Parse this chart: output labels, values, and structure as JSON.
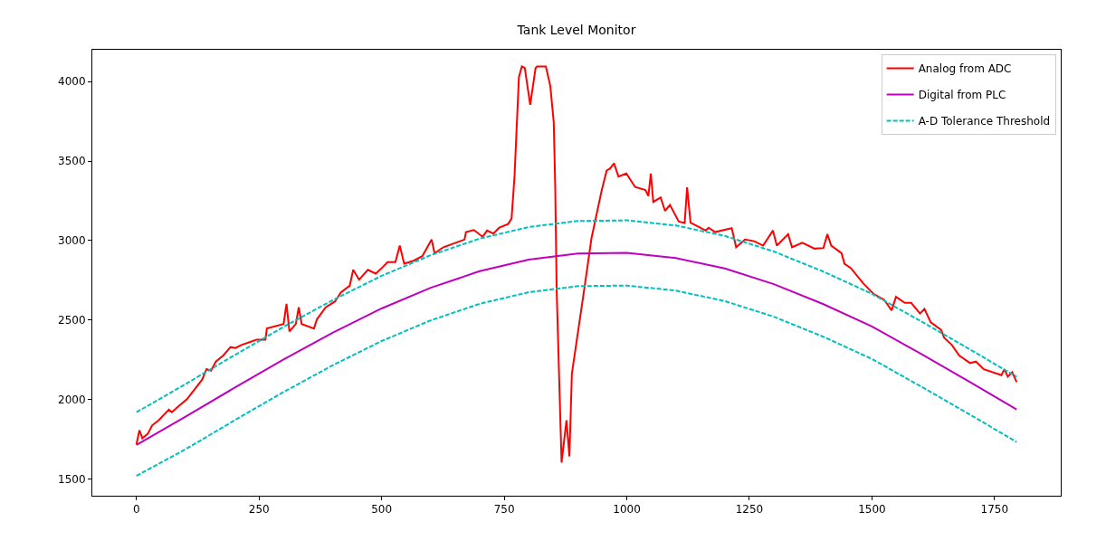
{
  "chart_data": {
    "type": "line",
    "title": "Tank Level Monitor",
    "xlim": [
      -90,
      1885
    ],
    "ylim": [
      1395,
      4200
    ],
    "xticks": [
      0,
      250,
      500,
      750,
      1000,
      1250,
      1500,
      1750
    ],
    "yticks": [
      1500,
      2000,
      2500,
      3000,
      3500,
      4000
    ],
    "legend": "top right",
    "marker": "none",
    "series": [
      {
        "name": "Analog from ADC",
        "color": "#ff0000",
        "line_style": "solid",
        "x": [
          0,
          6,
          12,
          23,
          32,
          45,
          66,
          72,
          85,
          103,
          134,
          143,
          152,
          162,
          177,
          192,
          202,
          214,
          232,
          245,
          263,
          266,
          300,
          306,
          312,
          325,
          331,
          337,
          362,
          368,
          386,
          405,
          417,
          435,
          442,
          454,
          472,
          488,
          503,
          512,
          528,
          537,
          546,
          565,
          583,
          602,
          608,
          626,
          669,
          672,
          688,
          706,
          715,
          728,
          740,
          758,
          765,
          771,
          780,
          786,
          792,
          803,
          814,
          817,
          835,
          844,
          851,
          854,
          857,
          867,
          877,
          883,
          888,
          915,
          928,
          949,
          959,
          965,
          974,
          983,
          999,
          1017,
          1038,
          1044,
          1049,
          1054,
          1069,
          1078,
          1088,
          1106,
          1118,
          1123,
          1130,
          1161,
          1167,
          1180,
          1214,
          1223,
          1241,
          1260,
          1278,
          1298,
          1306,
          1329,
          1337,
          1358,
          1383,
          1401,
          1409,
          1417,
          1438,
          1444,
          1457,
          1482,
          1503,
          1525,
          1540,
          1549,
          1567,
          1580,
          1598,
          1607,
          1620,
          1641,
          1647,
          1663,
          1678,
          1700,
          1712,
          1728,
          1764,
          1770,
          1777,
          1786,
          1795
        ],
        "values": [
          1718,
          1807,
          1756,
          1784,
          1837,
          1869,
          1936,
          1920,
          1955,
          2002,
          2125,
          2191,
          2182,
          2239,
          2277,
          2330,
          2324,
          2343,
          2362,
          2377,
          2377,
          2447,
          2475,
          2602,
          2428,
          2475,
          2580,
          2475,
          2447,
          2504,
          2580,
          2617,
          2674,
          2716,
          2816,
          2754,
          2816,
          2792,
          2835,
          2864,
          2864,
          2968,
          2854,
          2873,
          2902,
          3006,
          2920,
          2958,
          3006,
          3053,
          3066,
          3024,
          3063,
          3044,
          3081,
          3104,
          3138,
          3403,
          4028,
          4095,
          4085,
          3854,
          4085,
          4095,
          4095,
          3972,
          3744,
          3347,
          2684,
          1604,
          1869,
          1642,
          2163,
          2731,
          3015,
          3318,
          3441,
          3451,
          3485,
          3403,
          3422,
          3337,
          3318,
          3281,
          3422,
          3243,
          3271,
          3186,
          3224,
          3119,
          3110,
          3335,
          3113,
          3063,
          3081,
          3053,
          3078,
          2958,
          3006,
          2996,
          2968,
          3063,
          2968,
          3040,
          2958,
          2986,
          2949,
          2953,
          3040,
          2968,
          2920,
          2854,
          2826,
          2731,
          2665,
          2627,
          2561,
          2646,
          2608,
          2608,
          2541,
          2570,
          2485,
          2438,
          2390,
          2343,
          2277,
          2229,
          2239,
          2191,
          2153,
          2191,
          2144,
          2172,
          2110
        ]
      },
      {
        "name": "Digital from PLC",
        "color": "#bf00bf",
        "line_style": "solid",
        "x": [
          0,
          100,
          200,
          300,
          400,
          500,
          600,
          700,
          800,
          900,
          1000,
          1100,
          1200,
          1300,
          1400,
          1500,
          1600,
          1700,
          1795
        ],
        "values": [
          1715,
          1892,
          2074,
          2252,
          2420,
          2573,
          2703,
          2807,
          2880,
          2918,
          2922,
          2890,
          2824,
          2726,
          2601,
          2460,
          2287,
          2110,
          1938
        ]
      },
      {
        "name": "A-D Tolerance Threshold",
        "color": "#00bfbf",
        "line_style": "dashed",
        "x": [
          0,
          100,
          200,
          300,
          400,
          500,
          600,
          700,
          800,
          900,
          1000,
          1100,
          1200,
          1300,
          1400,
          1500,
          1600,
          1700,
          1795
        ],
        "values": [
          1920,
          2097,
          2279,
          2457,
          2625,
          2778,
          2908,
          3012,
          3085,
          3123,
          3127,
          3095,
          3029,
          2931,
          2806,
          2665,
          2492,
          2315,
          2143
        ]
      },
      {
        "color": "#00bfbf",
        "line_style": "dashed",
        "x": [
          0,
          100,
          200,
          300,
          400,
          500,
          600,
          700,
          800,
          900,
          1000,
          1100,
          1200,
          1300,
          1400,
          1500,
          1600,
          1700,
          1795
        ],
        "values": [
          1520,
          1687,
          1869,
          2047,
          2215,
          2368,
          2498,
          2602,
          2675,
          2713,
          2717,
          2685,
          2619,
          2521,
          2396,
          2255,
          2082,
          1905,
          1733
        ]
      }
    ]
  }
}
